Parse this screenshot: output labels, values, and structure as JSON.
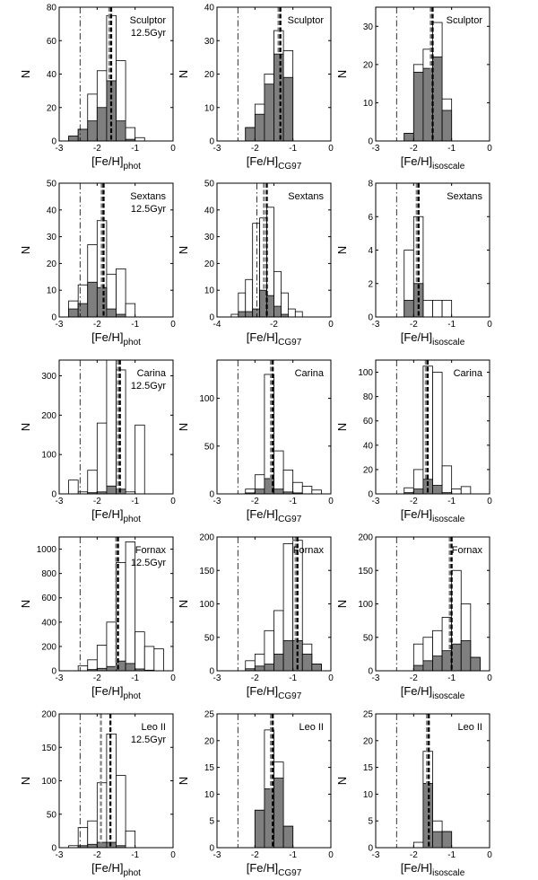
{
  "figure": {
    "y_label": "N",
    "x_label_base": "[Fe/H]",
    "column_subscripts": [
      "phot",
      "CG97",
      "isoscale"
    ]
  },
  "chart_data": [
    {
      "type": "bar",
      "galaxy": "Sculptor",
      "age": "12.5Gyr",
      "xlim": [
        -3,
        0
      ],
      "ylim": [
        0,
        80
      ],
      "xticks": [
        -3,
        -2,
        -1,
        0
      ],
      "yticks": [
        0,
        20,
        40,
        60,
        80
      ],
      "bin_width": 0.25,
      "edges": [
        -2.75,
        -2.5,
        -2.25,
        -2.0,
        -1.75,
        -1.5,
        -1.25,
        -1.0,
        -0.75
      ],
      "open_counts": [
        2,
        7,
        28,
        42,
        75,
        48,
        8,
        2
      ],
      "filled_counts": [
        3,
        7,
        12,
        20,
        36,
        12,
        1,
        0
      ],
      "lines": {
        "dashdot": -2.45,
        "dashed_gray": -1.68,
        "dashed_black": -1.63
      }
    },
    {
      "type": "bar",
      "galaxy": "Sculptor",
      "age": "",
      "xlim": [
        -3,
        0
      ],
      "ylim": [
        0,
        40
      ],
      "xticks": [
        -3,
        -2,
        -1,
        0
      ],
      "yticks": [
        0,
        10,
        20,
        30,
        40
      ],
      "bin_width": 0.25,
      "edges": [
        -2.25,
        -2.0,
        -1.75,
        -1.5,
        -1.25,
        -1.0
      ],
      "open_counts": [
        4,
        11,
        20,
        33,
        27
      ],
      "filled_counts": [
        4,
        8,
        17,
        26,
        19
      ],
      "lines": {
        "dashdot": -2.45,
        "dashed_gray": -1.38,
        "dashed_black": -1.33
      }
    },
    {
      "type": "bar",
      "galaxy": "Sculptor",
      "age": "",
      "xlim": [
        -3,
        0
      ],
      "ylim": [
        0,
        35
      ],
      "xticks": [
        -3,
        -2,
        -1,
        0
      ],
      "yticks": [
        0,
        10,
        20,
        30
      ],
      "bin_width": 0.25,
      "edges": [
        -2.25,
        -2.0,
        -1.75,
        -1.5,
        -1.25,
        -1.0
      ],
      "open_counts": [
        2,
        20,
        24,
        31,
        11
      ],
      "filled_counts": [
        2,
        18,
        19,
        22,
        8
      ],
      "lines": {
        "dashdot": -2.45,
        "dashed_gray": -1.55,
        "dashed_black": -1.5
      }
    },
    {
      "type": "bar",
      "galaxy": "Sextans",
      "age": "12.5Gyr",
      "xlim": [
        -3,
        0
      ],
      "ylim": [
        0,
        50
      ],
      "xticks": [
        -3,
        -2,
        -1,
        0
      ],
      "yticks": [
        0,
        10,
        20,
        30,
        40,
        50
      ],
      "bin_width": 0.25,
      "edges": [
        -2.75,
        -2.5,
        -2.25,
        -2.0,
        -1.75,
        -1.5,
        -1.25,
        -1.0
      ],
      "open_counts": [
        6,
        12,
        27,
        36,
        16,
        18,
        5
      ],
      "filled_counts": [
        3,
        5,
        13,
        11,
        3,
        1,
        0
      ],
      "lines": {
        "dashdot": -2.45,
        "dashed_gray": -1.88,
        "dashed_black": -1.83
      }
    },
    {
      "type": "bar",
      "galaxy": "Sextans",
      "age": "",
      "xlim": [
        -4,
        0
      ],
      "ylim": [
        0,
        50
      ],
      "xticks": [
        -4,
        -2,
        0
      ],
      "yticks": [
        0,
        10,
        20,
        30,
        40,
        50
      ],
      "bin_width": 0.25,
      "edges": [
        -3.5,
        -3.25,
        -3.0,
        -2.75,
        -2.5,
        -2.25,
        -2.0,
        -1.75,
        -1.5,
        -1.25,
        -1.0
      ],
      "open_counts": [
        1,
        9,
        14,
        35,
        37,
        41,
        17,
        9,
        3,
        2
      ],
      "filled_counts": [
        0,
        2,
        2,
        3,
        10,
        8,
        4,
        1,
        0,
        0
      ],
      "lines": {
        "dashdot": -2.6,
        "dashed_gray": -2.35,
        "dashed_black": -2.25
      }
    },
    {
      "type": "bar",
      "galaxy": "Sextans",
      "age": "",
      "xlim": [
        -3,
        0
      ],
      "ylim": [
        0,
        8
      ],
      "xticks": [
        -3,
        -2,
        -1,
        0
      ],
      "yticks": [
        0,
        2,
        4,
        6,
        8
      ],
      "bin_width": 0.25,
      "edges": [
        -2.25,
        -2.0,
        -1.75,
        -1.5,
        -1.25,
        -1.0
      ],
      "open_counts": [
        4,
        6,
        1,
        1,
        1
      ],
      "filled_counts": [
        1,
        2,
        0,
        0,
        0
      ],
      "lines": {
        "dashdot": -2.45,
        "dashed_gray": -1.92,
        "dashed_black": -1.87
      }
    },
    {
      "type": "bar",
      "galaxy": "Carina",
      "age": "12.5Gyr",
      "xlim": [
        -3,
        0
      ],
      "ylim": [
        0,
        340
      ],
      "xticks": [
        -3,
        -2,
        -1,
        0
      ],
      "yticks": [
        0,
        100,
        200,
        300
      ],
      "bin_width": 0.25,
      "edges": [
        -2.75,
        -2.5,
        -2.25,
        -2.0,
        -1.75,
        -1.5,
        -1.25,
        -1.0,
        -0.75
      ],
      "open_counts": [
        35,
        5,
        60,
        180,
        340,
        315,
        5,
        175
      ],
      "filled_counts": [
        0,
        0,
        3,
        5,
        20,
        12,
        0,
        0
      ],
      "lines": {
        "dashdot": -2.45,
        "dashed_gray": -1.45,
        "dashed_black": -1.4
      }
    },
    {
      "type": "bar",
      "galaxy": "Carina",
      "age": "",
      "xlim": [
        -3,
        0
      ],
      "ylim": [
        0,
        140
      ],
      "xticks": [
        -3,
        -2,
        -1,
        0
      ],
      "yticks": [
        0,
        50,
        100
      ],
      "bin_width": 0.25,
      "edges": [
        -2.25,
        -2.0,
        -1.75,
        -1.5,
        -1.25,
        -1.0,
        -0.75,
        -0.5,
        -0.25
      ],
      "open_counts": [
        5,
        20,
        125,
        45,
        25,
        12,
        8,
        4
      ],
      "filled_counts": [
        1,
        5,
        16,
        5,
        2,
        1,
        0,
        0
      ],
      "lines": {
        "dashdot": -2.45,
        "dashed_gray": -1.58,
        "dashed_black": -1.53
      }
    },
    {
      "type": "bar",
      "galaxy": "Carina",
      "age": "",
      "xlim": [
        -3,
        0
      ],
      "ylim": [
        0,
        110
      ],
      "xticks": [
        -3,
        -2,
        -1,
        0
      ],
      "yticks": [
        0,
        20,
        40,
        60,
        80,
        100
      ],
      "bin_width": 0.25,
      "edges": [
        -2.25,
        -2.0,
        -1.75,
        -1.5,
        -1.25,
        -1.0,
        -0.75,
        -0.5
      ],
      "open_counts": [
        5,
        20,
        105,
        100,
        23,
        4,
        6
      ],
      "filled_counts": [
        1,
        4,
        12,
        7,
        1,
        0,
        0
      ],
      "lines": {
        "dashdot": -2.45,
        "dashed_gray": -1.68,
        "dashed_black": -1.63
      }
    },
    {
      "type": "bar",
      "galaxy": "Fornax",
      "age": "12.5Gyr",
      "xlim": [
        -3,
        0
      ],
      "ylim": [
        0,
        1100
      ],
      "xticks": [
        -3,
        -2,
        -1,
        0
      ],
      "yticks": [
        0,
        200,
        400,
        600,
        800,
        1000
      ],
      "bin_width": 0.25,
      "edges": [
        -2.5,
        -2.25,
        -2.0,
        -1.75,
        -1.5,
        -1.25,
        -1.0,
        -0.75,
        -0.5,
        -0.25
      ],
      "open_counts": [
        40,
        90,
        210,
        400,
        890,
        1060,
        320,
        200,
        180
      ],
      "filled_counts": [
        0,
        10,
        20,
        35,
        80,
        60,
        15,
        5,
        0
      ],
      "lines": {
        "dashdot": -2.45,
        "dashed_gray": -1.5,
        "dashed_black": -1.45
      }
    },
    {
      "type": "bar",
      "galaxy": "Fornax",
      "age": "",
      "xlim": [
        -3,
        0
      ],
      "ylim": [
        0,
        200
      ],
      "xticks": [
        -3,
        -2,
        -1,
        0
      ],
      "yticks": [
        0,
        50,
        100,
        150,
        200
      ],
      "bin_width": 0.25,
      "edges": [
        -2.25,
        -2.0,
        -1.75,
        -1.5,
        -1.25,
        -1.0,
        -0.75,
        -0.5,
        -0.25
      ],
      "open_counts": [
        15,
        25,
        60,
        90,
        190,
        195,
        40,
        10
      ],
      "filled_counts": [
        3,
        7,
        10,
        25,
        45,
        45,
        25,
        10
      ],
      "lines": {
        "dashdot": -2.45,
        "dashed_gray": -0.93,
        "dashed_black": -0.88
      }
    },
    {
      "type": "bar",
      "galaxy": "Fornax",
      "age": "",
      "xlim": [
        -3,
        0
      ],
      "ylim": [
        0,
        200
      ],
      "xticks": [
        -3,
        -2,
        -1,
        0
      ],
      "yticks": [
        0,
        50,
        100,
        150,
        200
      ],
      "bin_width": 0.25,
      "edges": [
        -2.0,
        -1.75,
        -1.5,
        -1.25,
        -1.0,
        -0.75,
        -0.5,
        -0.25
      ],
      "open_counts": [
        40,
        50,
        60,
        80,
        150,
        100,
        20
      ],
      "filled_counts": [
        8,
        15,
        22,
        30,
        40,
        45,
        20
      ],
      "lines": {
        "dashdot": -2.45,
        "dashed_gray": -1.05,
        "dashed_black": -1.0
      }
    },
    {
      "type": "bar",
      "galaxy": "Leo II",
      "age": "12.5Gyr",
      "xlim": [
        -3,
        0
      ],
      "ylim": [
        0,
        200
      ],
      "xticks": [
        -3,
        -2,
        -1,
        0
      ],
      "yticks": [
        0,
        50,
        100,
        150,
        200
      ],
      "bin_width": 0.25,
      "edges": [
        -2.75,
        -2.5,
        -2.25,
        -2.0,
        -1.75,
        -1.5,
        -1.25,
        -1.0
      ],
      "open_counts": [
        3,
        30,
        40,
        97,
        170,
        108,
        25
      ],
      "filled_counts": [
        0,
        3,
        5,
        8,
        8,
        3,
        0
      ],
      "lines": {
        "dashdot": -2.45,
        "dashed_gray": -1.9,
        "dashed_black": -1.65
      }
    },
    {
      "type": "bar",
      "galaxy": "Leo II",
      "age": "",
      "xlim": [
        -3,
        0
      ],
      "ylim": [
        0,
        25
      ],
      "xticks": [
        -3,
        -2,
        -1,
        0
      ],
      "yticks": [
        0,
        5,
        10,
        15,
        20,
        25
      ],
      "bin_width": 0.25,
      "edges": [
        -2.0,
        -1.75,
        -1.5,
        -1.25,
        -1.0
      ],
      "open_counts": [
        7,
        22,
        16,
        4
      ],
      "filled_counts": [
        7,
        11,
        13,
        4
      ],
      "lines": {
        "dashdot": -2.45,
        "dashed_gray": -1.58,
        "dashed_black": -1.53
      }
    },
    {
      "type": "bar",
      "galaxy": "Leo II",
      "age": "",
      "xlim": [
        -3,
        0
      ],
      "ylim": [
        0,
        25
      ],
      "xticks": [
        -3,
        -2,
        -1,
        0
      ],
      "yticks": [
        0,
        5,
        10,
        15,
        20,
        25
      ],
      "bin_width": 0.25,
      "edges": [
        -2.0,
        -1.75,
        -1.5,
        -1.25,
        -1.0
      ],
      "open_counts": [
        1,
        18,
        5,
        3
      ],
      "filled_counts": [
        0,
        12,
        3,
        3
      ],
      "lines": {
        "dashdot": -2.45,
        "dashed_gray": -1.65,
        "dashed_black": -1.6
      }
    }
  ]
}
